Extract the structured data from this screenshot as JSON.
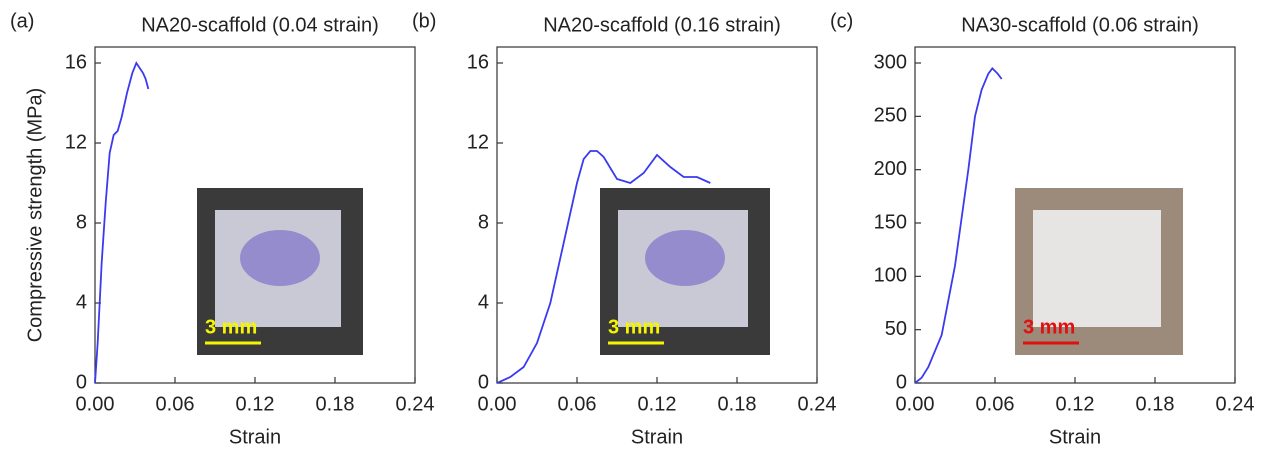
{
  "chart_data": [
    {
      "type": "line",
      "panel_label": "(a)",
      "title": "NA20-scaffold (0.04 strain)",
      "xlabel": "Strain",
      "ylabel": "Compressive strength (MPa)",
      "x": [
        0,
        0.002,
        0.005,
        0.008,
        0.011,
        0.014,
        0.017,
        0.02,
        0.024,
        0.028,
        0.031,
        0.033,
        0.036,
        0.038,
        0.04
      ],
      "series": [
        {
          "name": "NA20-scaffold",
          "color": "#3a3af0",
          "values": [
            0,
            2,
            6,
            9,
            11.5,
            12.4,
            12.6,
            13.3,
            14.5,
            15.5,
            16.0,
            15.8,
            15.5,
            15.2,
            14.7
          ]
        }
      ],
      "xlim": [
        0,
        0.24
      ],
      "ylim": [
        0,
        16.8
      ],
      "xticks": [
        {
          "value": 0,
          "label": "0.00"
        },
        {
          "value": 0.06,
          "label": "0.06"
        },
        {
          "value": 0.12,
          "label": "0.12"
        },
        {
          "value": 0.18,
          "label": "0.18"
        },
        {
          "value": 0.24,
          "label": "0.24"
        }
      ],
      "yticks": [
        0,
        4,
        8,
        12,
        16
      ],
      "inset_label": "3 mm",
      "inset_label_color": "#f5f500"
    },
    {
      "type": "line",
      "panel_label": "(b)",
      "title": "NA20-scaffold (0.16 strain)",
      "xlabel": "Strain",
      "x": [
        0,
        0.01,
        0.02,
        0.03,
        0.04,
        0.05,
        0.06,
        0.065,
        0.07,
        0.075,
        0.08,
        0.09,
        0.1,
        0.11,
        0.12,
        0.13,
        0.14,
        0.15,
        0.16
      ],
      "series": [
        {
          "name": "NA20-scaffold",
          "color": "#3a3af0",
          "values": [
            0,
            0.3,
            0.8,
            2,
            4,
            7,
            10,
            11.2,
            11.6,
            11.6,
            11.3,
            10.2,
            10.0,
            10.5,
            11.4,
            10.8,
            10.3,
            10.3,
            10.0
          ]
        }
      ],
      "xlim": [
        0,
        0.24
      ],
      "ylim": [
        0,
        16.8
      ],
      "xticks": [
        {
          "value": 0,
          "label": "0.00"
        },
        {
          "value": 0.06,
          "label": "0.06"
        },
        {
          "value": 0.12,
          "label": "0.12"
        },
        {
          "value": 0.18,
          "label": "0.18"
        },
        {
          "value": 0.24,
          "label": "0.24"
        }
      ],
      "yticks": [
        0,
        4,
        8,
        12,
        16
      ],
      "inset_label": "3 mm",
      "inset_label_color": "#f5f500"
    },
    {
      "type": "line",
      "panel_label": "(c)",
      "title": "NA30-scaffold (0.06 strain)",
      "xlabel": "Strain",
      "x": [
        0,
        0.005,
        0.01,
        0.02,
        0.03,
        0.04,
        0.045,
        0.05,
        0.055,
        0.058,
        0.062,
        0.065
      ],
      "series": [
        {
          "name": "NA30-scaffold",
          "color": "#3a3af0",
          "values": [
            0,
            5,
            15,
            45,
            110,
            200,
            250,
            275,
            290,
            295,
            290,
            285
          ]
        }
      ],
      "xlim": [
        0,
        0.24
      ],
      "ylim": [
        0,
        315
      ],
      "xticks": [
        {
          "value": 0,
          "label": "0.00"
        },
        {
          "value": 0.06,
          "label": "0.06"
        },
        {
          "value": 0.12,
          "label": "0.12"
        },
        {
          "value": 0.18,
          "label": "0.18"
        },
        {
          "value": 0.24,
          "label": "0.24"
        }
      ],
      "yticks": [
        0,
        50,
        100,
        150,
        200,
        250,
        300
      ],
      "inset_label": "3 mm",
      "inset_label_color": "#e01010"
    }
  ]
}
